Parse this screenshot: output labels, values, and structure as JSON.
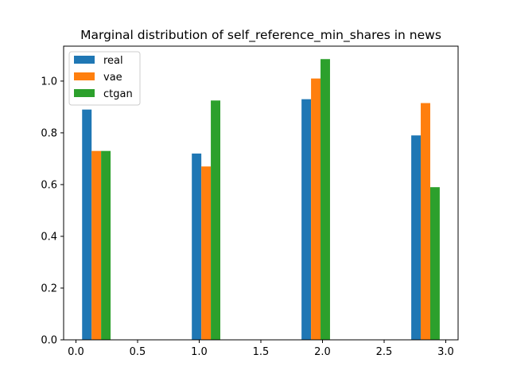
{
  "chart_data": {
    "type": "bar",
    "title": "Marginal distribution of self_reference_min_shares in news",
    "xlabel": "",
    "ylabel": "",
    "xlim": [
      -0.1,
      3.1
    ],
    "ylim": [
      0,
      1.135
    ],
    "x_ticks": [
      0.0,
      0.5,
      1.0,
      1.5,
      2.0,
      2.5,
      3.0
    ],
    "x_tick_labels": [
      "0.0",
      "0.5",
      "1.0",
      "1.5",
      "2.0",
      "2.5",
      "3.0"
    ],
    "y_ticks": [
      0.0,
      0.2,
      0.4,
      0.6,
      0.8,
      1.0
    ],
    "y_tick_labels": [
      "0.0",
      "0.2",
      "0.4",
      "0.6",
      "0.8",
      "1.0"
    ],
    "bin_width": 0.077,
    "legend_position": "top-left",
    "grid": false,
    "series": [
      {
        "name": "real",
        "color": "#1f77b4",
        "bins": [
          0.05,
          0.94,
          1.83,
          2.72
        ],
        "values": [
          0.89,
          0.72,
          0.93,
          0.79
        ]
      },
      {
        "name": "vae",
        "color": "#ff7f0e",
        "bins": [
          0.127,
          1.017,
          1.907,
          2.797
        ],
        "values": [
          0.73,
          0.67,
          1.01,
          0.915
        ]
      },
      {
        "name": "ctgan",
        "color": "#2ca02c",
        "bins": [
          0.204,
          1.094,
          1.984,
          2.874
        ],
        "values": [
          0.73,
          0.925,
          1.085,
          0.59
        ]
      }
    ]
  }
}
